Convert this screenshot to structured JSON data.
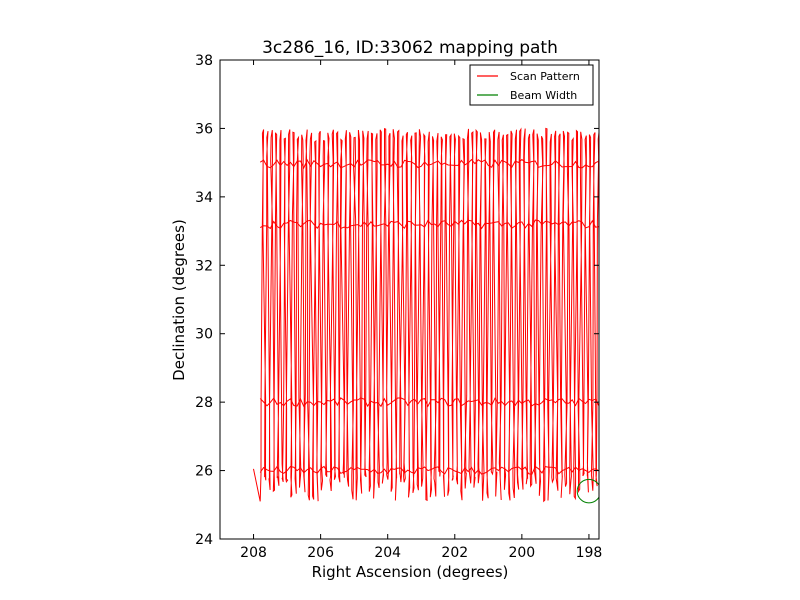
{
  "chart_data": {
    "type": "line",
    "title": "3c286_16, ID:33062 mapping path",
    "xlabel": "Right Ascension (degrees)",
    "ylabel": "Declination (degrees)",
    "xlim": [
      209,
      197.7
    ],
    "ylim": [
      24,
      38
    ],
    "xticks": [
      208,
      206,
      204,
      202,
      200,
      198
    ],
    "yticks": [
      24,
      26,
      28,
      30,
      32,
      34,
      36,
      38
    ],
    "xtick_labels": [
      "208",
      "206",
      "204",
      "202",
      "200",
      "198"
    ],
    "ytick_labels": [
      "24",
      "26",
      "28",
      "30",
      "32",
      "34",
      "36",
      "38"
    ],
    "legend_position": "top-right",
    "series": [
      {
        "name": "Scan Pattern",
        "color": "#ff0000",
        "ra_start": 207.8,
        "ra_end": 197.7,
        "ra_step": 0.13,
        "dec_low": [
          25.1,
          26.0
        ],
        "dec_high": [
          35.6,
          36.0
        ],
        "ra_tilt": 0.1,
        "bands_dec": [
          26.0,
          28.0,
          33.2,
          34.97
        ]
      },
      {
        "name": "Beam Width",
        "color": "#008000",
        "center": [
          198.0,
          25.4
        ],
        "radius_deg": 0.35
      }
    ],
    "legend": [
      "Scan Pattern",
      "Beam Width"
    ]
  }
}
